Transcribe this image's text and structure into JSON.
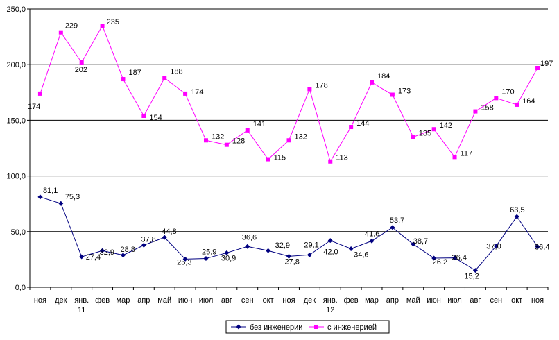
{
  "chart_data": {
    "type": "line",
    "ylim": [
      0,
      250
    ],
    "y_ticks": [
      "0,0",
      "50,0",
      "100,0",
      "150,0",
      "200,0",
      "250,0"
    ],
    "y_tick_values": [
      0,
      50,
      100,
      150,
      200,
      250
    ],
    "grid": "horizontal major lines",
    "legend_position": "bottom",
    "categories": [
      [
        "ноя"
      ],
      [
        "дек"
      ],
      [
        "янв.",
        "11"
      ],
      [
        "фев"
      ],
      [
        "мар"
      ],
      [
        "апр"
      ],
      [
        "май"
      ],
      [
        "июн"
      ],
      [
        "июл"
      ],
      [
        "авг"
      ],
      [
        "сен"
      ],
      [
        "окт"
      ],
      [
        "ноя"
      ],
      [
        "дек"
      ],
      [
        "янв.",
        "12"
      ],
      [
        "фев"
      ],
      [
        "мар"
      ],
      [
        "апр"
      ],
      [
        "май"
      ],
      [
        "июн"
      ],
      [
        "июл"
      ],
      [
        "авг"
      ],
      [
        "сен"
      ],
      [
        "окт"
      ],
      [
        "ноя"
      ]
    ],
    "series": [
      {
        "name": "без инженерии",
        "color": "#000080",
        "marker": "diamond",
        "values": [
          81.1,
          75.3,
          27.4,
          32.9,
          28.8,
          37.8,
          44.8,
          25.3,
          25.9,
          30.9,
          36.6,
          32.9,
          27.8,
          29.1,
          42.0,
          34.6,
          41.6,
          53.7,
          38.7,
          26.2,
          26.4,
          15.2,
          37.0,
          63.5,
          36.4
        ],
        "labels": [
          "81,1",
          "75,3",
          "27,4",
          "32,9",
          "28,8",
          "37,8",
          "44,8",
          "25,3",
          "25,9",
          "30,9",
          "36,6",
          "32,9",
          "27,8",
          "29,1",
          "42,0",
          "34,6",
          "41,6",
          "53,7",
          "38,7",
          "26,2",
          "26,4",
          "15,2",
          "37,0",
          "63,5",
          "36,4"
        ]
      },
      {
        "name": "с инженерией",
        "color": "#ff00ff",
        "marker": "square",
        "values": [
          174,
          229,
          202,
          235,
          187,
          154,
          188,
          174,
          132,
          128,
          141,
          115,
          132,
          178,
          113,
          144,
          184,
          173,
          135,
          142,
          117,
          158,
          170,
          164,
          197
        ],
        "labels": [
          "174",
          "229",
          "202",
          "235",
          "187",
          "154",
          "188",
          "174",
          "132",
          "128",
          "141",
          "115",
          "132",
          "178",
          "113",
          "144",
          "184",
          "173",
          "135",
          "142",
          "117",
          "158",
          "170",
          "164",
          "197"
        ]
      }
    ]
  }
}
